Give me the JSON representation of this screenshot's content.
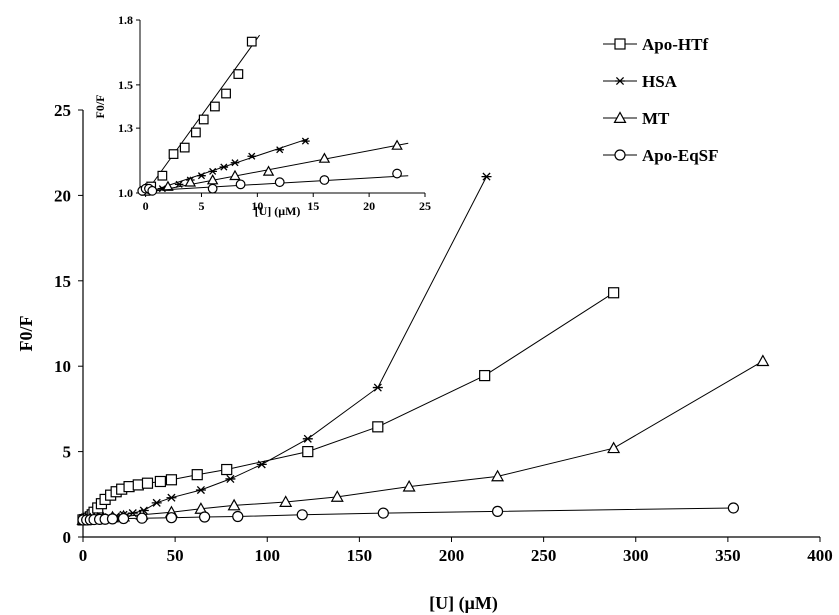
{
  "chart_data": [
    {
      "type": "line",
      "name": "main",
      "xlabel": "[U] (μM)",
      "ylabel": "F0/F",
      "xlim": [
        0,
        400
      ],
      "ylim": [
        0,
        25
      ],
      "xticks": [
        0,
        50,
        100,
        150,
        200,
        250,
        300,
        350,
        400
      ],
      "yticks": [
        0,
        5,
        10,
        15,
        20,
        25
      ],
      "grid": false,
      "legend_position": "top-right",
      "series": [
        {
          "name": "Apo-HTf",
          "marker": "square",
          "x": [
            0,
            1,
            2,
            3,
            4,
            5,
            6,
            8,
            10,
            12,
            15,
            18,
            21,
            25,
            30,
            35,
            42,
            48,
            62,
            78,
            122,
            160,
            218,
            288
          ],
          "y": [
            1.0,
            1.02,
            1.05,
            1.1,
            1.18,
            1.3,
            1.45,
            1.7,
            1.95,
            2.2,
            2.45,
            2.65,
            2.8,
            2.95,
            3.05,
            3.15,
            3.25,
            3.35,
            3.65,
            3.95,
            5.0,
            6.45,
            9.45,
            14.3
          ]
        },
        {
          "name": "HSA",
          "marker": "asterisk",
          "x": [
            0,
            2,
            4,
            6,
            8,
            10,
            14,
            18,
            22,
            27,
            33,
            40,
            48,
            64,
            80,
            97,
            122,
            160,
            219
          ],
          "y": [
            1.0,
            1.02,
            1.05,
            1.08,
            1.1,
            1.13,
            1.17,
            1.22,
            1.3,
            1.4,
            1.55,
            2.0,
            2.3,
            2.75,
            3.4,
            4.25,
            5.75,
            8.75,
            21.1
          ]
        },
        {
          "name": "MT",
          "marker": "triangle",
          "x": [
            0,
            2,
            4,
            6,
            8,
            11,
            16,
            22,
            32,
            48,
            64,
            82,
            110,
            138,
            177,
            225,
            288,
            369
          ],
          "y": [
            1.0,
            1.02,
            1.04,
            1.06,
            1.08,
            1.1,
            1.15,
            1.2,
            1.3,
            1.45,
            1.65,
            1.85,
            2.05,
            2.35,
            2.95,
            3.55,
            5.2,
            10.3
          ]
        },
        {
          "name": "Apo-EqSF",
          "marker": "circle",
          "x": [
            0,
            2,
            4,
            6,
            9,
            12,
            16,
            22,
            32,
            48,
            66,
            84,
            119,
            163,
            225,
            353
          ],
          "y": [
            1.0,
            1.0,
            1.01,
            1.02,
            1.03,
            1.04,
            1.06,
            1.08,
            1.1,
            1.13,
            1.17,
            1.2,
            1.3,
            1.4,
            1.5,
            1.7
          ]
        }
      ]
    },
    {
      "type": "line",
      "name": "inset",
      "xlabel": "[U] (μM)",
      "ylabel": "F0/F",
      "xlim": [
        -0.5,
        25
      ],
      "ylim": [
        1.0,
        1.8
      ],
      "xticks": [
        0,
        5,
        10,
        15,
        20,
        25
      ],
      "yticks": [
        1.0,
        1.3,
        1.5,
        1.8
      ],
      "grid": false,
      "series": [
        {
          "name": "Apo-HTf",
          "marker": "square",
          "x": [
            0,
            0.5,
            1.5,
            2.5,
            3.5,
            4.5,
            5.2,
            6.2,
            7.2,
            8.3,
            9.5
          ],
          "y": [
            1.01,
            1.03,
            1.08,
            1.18,
            1.21,
            1.28,
            1.34,
            1.4,
            1.46,
            1.55,
            1.7
          ],
          "fit": [
            [
              0,
              1.0
            ],
            [
              10.2,
              1.73
            ]
          ]
        },
        {
          "name": "HSA",
          "marker": "asterisk",
          "x": [
            0,
            1.5,
            3,
            4,
            5,
            6,
            7,
            8,
            9.5,
            12,
            14.3
          ],
          "y": [
            1.01,
            1.02,
            1.04,
            1.06,
            1.08,
            1.1,
            1.12,
            1.14,
            1.17,
            1.2,
            1.24
          ],
          "fit": [
            [
              0,
              1.0
            ],
            [
              14.5,
              1.25
            ]
          ]
        },
        {
          "name": "MT",
          "marker": "triangle",
          "x": [
            0,
            2,
            4,
            6,
            8,
            11,
            16,
            22.5
          ],
          "y": [
            1.02,
            1.03,
            1.05,
            1.06,
            1.08,
            1.1,
            1.16,
            1.22
          ],
          "fit": [
            [
              0,
              1.0
            ],
            [
              23.5,
              1.23
            ]
          ]
        },
        {
          "name": "Apo-EqSF",
          "marker": "circle",
          "x": [
            -0.3,
            0,
            0.3,
            0.6,
            6,
            8.5,
            12,
            16,
            22.5
          ],
          "y": [
            1.01,
            1.02,
            1.02,
            1.01,
            1.02,
            1.04,
            1.05,
            1.06,
            1.09
          ],
          "fit": [
            [
              0,
              1.01
            ],
            [
              23.5,
              1.08
            ]
          ]
        }
      ]
    }
  ],
  "legend": {
    "items": [
      {
        "label": "Apo-HTf",
        "marker": "square"
      },
      {
        "label": "HSA",
        "marker": "asterisk"
      },
      {
        "label": "MT",
        "marker": "triangle"
      },
      {
        "label": "Apo-EqSF",
        "marker": "circle"
      }
    ]
  },
  "colors": {
    "ink": "#000000",
    "background": "#ffffff"
  }
}
